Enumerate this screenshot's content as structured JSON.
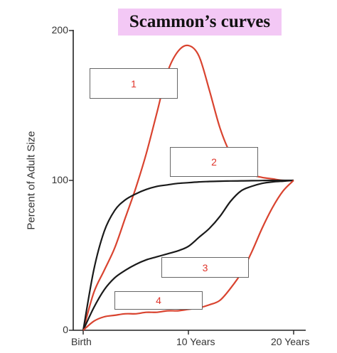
{
  "chart_data": {
    "type": "line",
    "title": "Scammon’s curves",
    "ylabel": "Percent of Adult Size",
    "xlabel": "",
    "x_ticks": [
      {
        "value": 0,
        "label": "Birth"
      },
      {
        "value": 10,
        "label": "10 Years"
      },
      {
        "value": 20,
        "label": "20 Years"
      }
    ],
    "y_ticks": [
      {
        "value": 0,
        "label": "0"
      },
      {
        "value": 100,
        "label": "100"
      },
      {
        "value": 200,
        "label": "200"
      }
    ],
    "xlim": [
      -1,
      22
    ],
    "ylim": [
      0,
      200
    ],
    "grid": false,
    "series": [
      {
        "name": "1",
        "color": "#d9432f",
        "x": [
          0,
          1,
          2,
          3,
          4,
          5,
          6,
          7,
          8,
          9,
          10,
          11,
          12,
          13,
          14,
          15,
          16,
          17,
          18,
          19,
          20
        ],
        "y": [
          0,
          25,
          40,
          55,
          75,
          95,
          118,
          145,
          172,
          186,
          190,
          183,
          160,
          135,
          118,
          110,
          104,
          102,
          101,
          100,
          100
        ]
      },
      {
        "name": "2",
        "color": "#1a1a1a",
        "x": [
          0,
          1,
          2,
          3,
          4,
          5,
          6,
          7,
          8,
          9,
          10,
          11,
          12,
          13,
          14,
          15,
          16,
          17,
          18,
          19,
          20
        ],
        "y": [
          0,
          40,
          66,
          80,
          87,
          91,
          94,
          96,
          97,
          98,
          98.5,
          99,
          99.3,
          99.5,
          99.6,
          99.7,
          99.8,
          99.9,
          100,
          100,
          100
        ]
      },
      {
        "name": "3",
        "color": "#1a1a1a",
        "x": [
          0,
          1,
          2,
          3,
          4,
          5,
          6,
          7,
          8,
          9,
          10,
          11,
          12,
          13,
          14,
          15,
          16,
          17,
          18,
          19,
          20
        ],
        "y": [
          0,
          15,
          27,
          35,
          40,
          44,
          47,
          49,
          51,
          53,
          56,
          62,
          68,
          76,
          86,
          93,
          96,
          98,
          99,
          99.5,
          100
        ]
      },
      {
        "name": "4",
        "color": "#d9432f",
        "x": [
          0,
          1,
          2,
          3,
          4,
          5,
          6,
          7,
          8,
          9,
          10,
          11,
          12,
          13,
          14,
          15,
          16,
          17,
          18,
          19,
          20
        ],
        "y": [
          0,
          6,
          9,
          10,
          11,
          11,
          12,
          12,
          13,
          13,
          14,
          15,
          17,
          20,
          28,
          38,
          52,
          68,
          82,
          93,
          100
        ]
      }
    ],
    "label_boxes": [
      {
        "text": "1"
      },
      {
        "text": "2"
      },
      {
        "text": "3"
      },
      {
        "text": "4"
      }
    ]
  }
}
